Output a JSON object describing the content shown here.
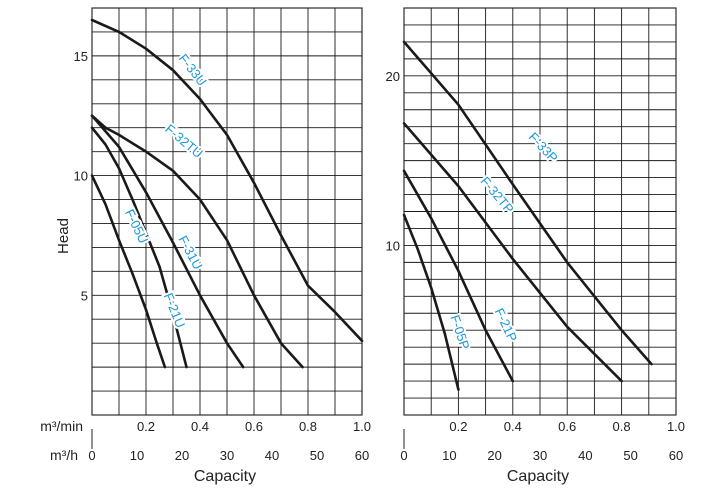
{
  "chart_data": [
    {
      "type": "line",
      "panel": "left",
      "ylabel": "Head",
      "xlabel": "Capacity",
      "row_label_top": "m³/min",
      "row_label_bottom": "m³/h",
      "xlim_m3min": [
        0,
        1.0
      ],
      "ylim": [
        0,
        17
      ],
      "yticks": [
        "5",
        "10",
        "15"
      ],
      "ytick_values": [
        5,
        10,
        15
      ],
      "xticks_m3min": [
        "0.2",
        "0.4",
        "0.6",
        "0.8",
        "1.0"
      ],
      "xtick_values_m3min": [
        0.2,
        0.4,
        0.6,
        0.8,
        1.0
      ],
      "xticks_m3h": [
        "0",
        "10",
        "20",
        "30",
        "40",
        "50",
        "60"
      ],
      "xtick_values_m3h": [
        0,
        10,
        20,
        30,
        40,
        50,
        60
      ],
      "grid": true,
      "series": [
        {
          "name": "F-33U",
          "color": "#1a9ad6",
          "label_at": [
            0.36,
            14.3
          ],
          "label_angle": 52,
          "x": [
            0,
            0.1,
            0.2,
            0.3,
            0.4,
            0.5,
            0.6,
            0.7,
            0.8,
            0.9,
            1.0
          ],
          "y": [
            16.5,
            16.0,
            15.3,
            14.4,
            13.2,
            11.7,
            9.7,
            7.5,
            5.4,
            4.3,
            3.1
          ]
        },
        {
          "name": "F-32TU",
          "color": "#1a9ad6",
          "label_at": [
            0.33,
            11.3
          ],
          "label_angle": 40,
          "x": [
            0,
            0.05,
            0.1,
            0.2,
            0.3,
            0.4,
            0.5,
            0.6,
            0.7,
            0.78
          ],
          "y": [
            12.5,
            12.0,
            11.7,
            11.0,
            10.2,
            9.0,
            7.3,
            5.0,
            3.0,
            2.0
          ]
        },
        {
          "name": "F-31U",
          "color": "#1a9ad6",
          "label_at": [
            0.35,
            6.7
          ],
          "label_angle": 62,
          "x": [
            0,
            0.1,
            0.2,
            0.3,
            0.4,
            0.5,
            0.56
          ],
          "y": [
            12.5,
            11.2,
            9.3,
            7.2,
            5.0,
            3.0,
            2.0
          ]
        },
        {
          "name": "F-21U",
          "color": "#1a9ad6",
          "label_at": [
            0.29,
            4.3
          ],
          "label_angle": 68,
          "x": [
            0,
            0.05,
            0.1,
            0.15,
            0.2,
            0.25,
            0.3,
            0.35
          ],
          "y": [
            12.0,
            11.3,
            10.3,
            9.0,
            7.6,
            6.2,
            4.2,
            2.0
          ]
        },
        {
          "name": "F-05U",
          "color": "#1a9ad6",
          "label_at": [
            0.15,
            7.8
          ],
          "label_angle": 64,
          "x": [
            0,
            0.05,
            0.1,
            0.15,
            0.2,
            0.24,
            0.27
          ],
          "y": [
            10.0,
            8.8,
            7.3,
            5.9,
            4.4,
            3.0,
            2.0
          ]
        }
      ]
    },
    {
      "type": "line",
      "panel": "right",
      "xlabel": "Capacity",
      "xlim_m3min": [
        0,
        1.0
      ],
      "ylim": [
        0,
        24
      ],
      "yticks": [
        "10",
        "20"
      ],
      "ytick_values": [
        10,
        20
      ],
      "xticks_m3min": [
        "0.2",
        "0.4",
        "0.6",
        "0.8",
        "1.0"
      ],
      "xtick_values_m3min": [
        0.2,
        0.4,
        0.6,
        0.8,
        1.0
      ],
      "xticks_m3h": [
        "0",
        "10",
        "20",
        "30",
        "40",
        "50",
        "60"
      ],
      "xtick_values_m3h": [
        0,
        10,
        20,
        30,
        40,
        50,
        60
      ],
      "grid": true,
      "series": [
        {
          "name": "F-33P",
          "color": "#1a9ad6",
          "label_at": [
            0.5,
            15.6
          ],
          "label_angle": 47,
          "x": [
            0,
            0.2,
            0.4,
            0.6,
            0.8,
            0.91
          ],
          "y": [
            22.0,
            18.3,
            13.6,
            9.0,
            5.0,
            3.0
          ]
        },
        {
          "name": "F-32TP",
          "color": "#1a9ad6",
          "label_at": [
            0.33,
            12.8
          ],
          "label_angle": 50,
          "x": [
            0,
            0.2,
            0.4,
            0.6,
            0.8
          ],
          "y": [
            17.2,
            13.5,
            9.2,
            5.2,
            2.0
          ]
        },
        {
          "name": "F-21P",
          "color": "#1a9ad6",
          "label_at": [
            0.36,
            5.2
          ],
          "label_angle": 65,
          "x": [
            0,
            0.1,
            0.2,
            0.3,
            0.4
          ],
          "y": [
            14.4,
            11.6,
            8.5,
            5.0,
            2.0
          ]
        },
        {
          "name": "F-05P",
          "color": "#1a9ad6",
          "label_at": [
            0.19,
            4.8
          ],
          "label_angle": 72,
          "x": [
            0,
            0.05,
            0.1,
            0.15,
            0.2
          ],
          "y": [
            11.8,
            9.8,
            7.5,
            4.8,
            1.5
          ]
        }
      ]
    }
  ]
}
